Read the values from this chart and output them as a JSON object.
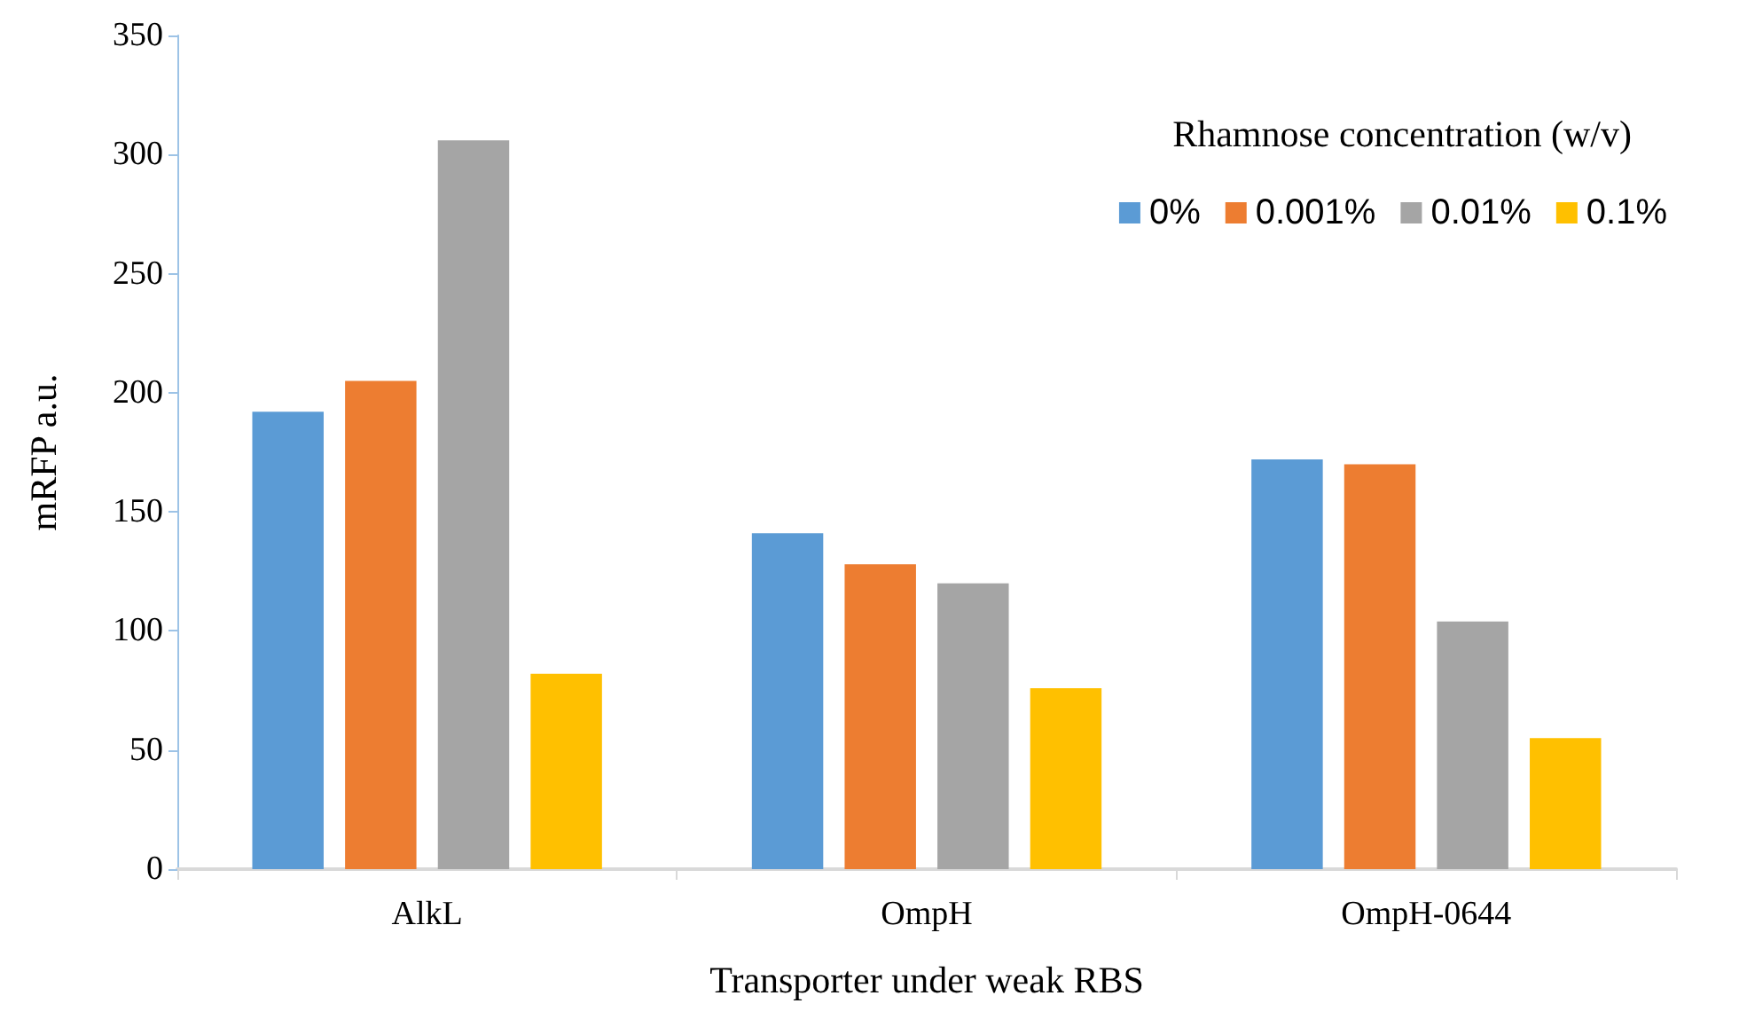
{
  "chart_data": {
    "type": "bar",
    "xlabel": "Transporter under weak RBS",
    "ylabel": "mRFP a.u.",
    "legend_title": "Rhamnose concentration (w/v)",
    "categories": [
      "AlkL",
      "OmpH",
      "OmpH-0644"
    ],
    "series": [
      {
        "name": "0%",
        "color": "#5b9bd5",
        "values": [
          192,
          141,
          172
        ]
      },
      {
        "name": "0.001%",
        "color": "#ed7d31",
        "values": [
          205,
          128,
          170
        ]
      },
      {
        "name": "0.01%",
        "color": "#a5a5a5",
        "values": [
          306,
          120,
          104
        ]
      },
      {
        "name": "0.1%",
        "color": "#ffc000",
        "values": [
          82,
          76,
          55
        ]
      }
    ],
    "ylim": [
      0,
      350
    ],
    "yticks": [
      0,
      50,
      100,
      150,
      200,
      250,
      300,
      350
    ],
    "grid": false,
    "legend": "top right"
  }
}
